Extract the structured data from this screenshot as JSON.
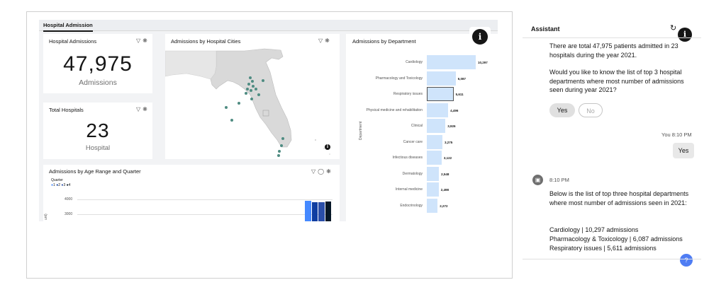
{
  "dashboard": {
    "tab_label": "Hospital Admission",
    "filter_icon": "filter-icon",
    "settings_icon": "settings-icon",
    "admissions_tile": {
      "title": "Hospital Admissions",
      "value": "47,975",
      "unit": "Admissions"
    },
    "hospitals_tile": {
      "title": "Total Hospitals",
      "value": "23",
      "unit": "Hospital"
    },
    "map_tile": {
      "title": "Admissions by Hospital Cities"
    },
    "dept_tile": {
      "title": "Admissions by Department",
      "axis_label": "Department",
      "bars": [
        {
          "label": "Cardiology",
          "value": 10297,
          "display": "10,297"
        },
        {
          "label": "Pharmacology and Toxicology",
          "value": 6087,
          "display": "6,087"
        },
        {
          "label": "Respiratory issues",
          "value": 5611,
          "display": "5,611"
        },
        {
          "label": "Physical medicine and rehabilitation",
          "value": 4496,
          "display": "4,496"
        },
        {
          "label": "Clinical",
          "value": 3926,
          "display": "3,926"
        },
        {
          "label": "Cancer care",
          "value": 3275,
          "display": "3,275"
        },
        {
          "label": "Infectious diseases",
          "value": 3122,
          "display": "3,122"
        },
        {
          "label": "Dermatology",
          "value": 2548,
          "display": "2,548"
        },
        {
          "label": "Internal medicine",
          "value": 2498,
          "display": "2,498"
        },
        {
          "label": "Endocrinology",
          "value": 2272,
          "display": "2,272"
        }
      ]
    },
    "age_tile": {
      "title": "Admissions by Age Range and Quarter",
      "legend_title": "Quarter",
      "legend": [
        "1",
        "2",
        "3",
        "4"
      ],
      "legend_colors": [
        "#4589ff",
        "#0f3ea1",
        "#2a4ea8",
        "#061727"
      ],
      "yticks": [
        "4000",
        "3000"
      ],
      "axis_label": "unt)",
      "bar_values": [
        3900,
        3820,
        3820,
        3870
      ]
    }
  },
  "assistant": {
    "title": "Assistant",
    "refresh_icon": "refresh-icon",
    "msg1": "There are total 47,975 patients admitted in 23 hospitals during the year 2021.",
    "msg2": "Would you like to know the list of top 3 hospital departments where most number of admissions seen during year 2021?",
    "yes_label": "Yes",
    "no_label": "No",
    "user_meta": "You 8:10 PM",
    "user_msg": "Yes",
    "bot_time": "8:10 PM",
    "msg3": "Below is the list of top three hospital departments where most number of admissions seen in 2021:",
    "list": [
      "Cardiology | 10,297 admissions",
      "Pharmacology & Toxicology | 6,087 admissions",
      "Respiratory issues | 5,611 admissions"
    ]
  }
}
